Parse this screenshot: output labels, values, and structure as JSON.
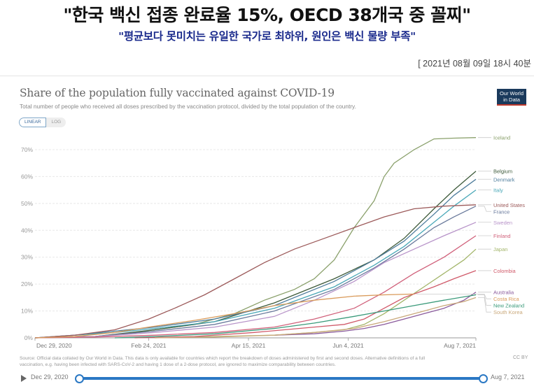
{
  "article": {
    "headline": "\"한국 백신 접종 완료율 15%, OECD 38개국 중 꼴찌\"",
    "subheadline": "\"평균보다 못미치는 유일한 국가로 최하위, 원인은 백신 물량 부족\"",
    "dateline": "[ 2021년 08월 09일 18시 40분"
  },
  "chart_header": {
    "logo_line1": "Our World",
    "logo_line2": "in Data",
    "toggle_linear": "LINEAR",
    "toggle_log": "LOG",
    "toggle_selected": "LINEAR"
  },
  "chart_data": {
    "type": "line",
    "title": "Share of the population fully vaccinated against COVID-19",
    "subtitle": "Total number of people who received all doses prescribed by the vaccination protocol, divided by the total population of the country.",
    "xlabel": "",
    "ylabel": "",
    "x_unit": "days since Dec 29, 2020",
    "xlim": [
      0,
      221
    ],
    "ylim": [
      0,
      70
    ],
    "grid": true,
    "legend_position": "right",
    "y_ticks": [
      0,
      10,
      20,
      30,
      40,
      50,
      60,
      70
    ],
    "y_tick_labels": [
      "0%",
      "10%",
      "20%",
      "30%",
      "40%",
      "50%",
      "60%",
      "70%"
    ],
    "x_ticks": [
      0,
      57,
      107,
      157,
      221
    ],
    "x_tick_labels": [
      "Dec 29, 2020",
      "Feb 24, 2021",
      "Apr 15, 2021",
      "Jun 4, 2021",
      "Aug 7, 2021"
    ],
    "series": [
      {
        "name": "Iceland",
        "color": "#8aa06b",
        "x": [
          0,
          30,
          50,
          60,
          80,
          100,
          115,
          130,
          140,
          150,
          160,
          170,
          175,
          180,
          190,
          200,
          210,
          221
        ],
        "y": [
          0,
          0.5,
          2,
          3,
          5,
          9,
          14,
          18,
          22,
          29,
          41,
          51,
          60,
          65,
          70,
          74,
          74.3,
          74.5
        ]
      },
      {
        "name": "Belgium",
        "color": "#3d5a3a",
        "x": [
          0,
          30,
          60,
          90,
          120,
          150,
          170,
          185,
          200,
          210,
          221
        ],
        "y": [
          0,
          0.5,
          3,
          6,
          13,
          22,
          29,
          37,
          48,
          55,
          62
        ]
      },
      {
        "name": "Denmark",
        "color": "#4f7d9c",
        "x": [
          0,
          20,
          40,
          60,
          90,
          120,
          150,
          170,
          185,
          200,
          210,
          221
        ],
        "y": [
          0,
          1,
          2.5,
          4,
          7,
          12,
          21,
          29,
          36,
          46,
          53,
          59
        ]
      },
      {
        "name": "Italy",
        "color": "#4aa8b8",
        "x": [
          0,
          20,
          40,
          60,
          90,
          120,
          150,
          170,
          185,
          200,
          210,
          221
        ],
        "y": [
          0,
          1,
          2,
          3.5,
          6,
          11,
          19,
          27,
          34,
          43,
          49,
          55
        ]
      },
      {
        "name": "United States",
        "color": "#9c5a5a",
        "x": [
          0,
          20,
          40,
          57,
          70,
          85,
          100,
          115,
          130,
          145,
          160,
          175,
          190,
          205,
          221
        ],
        "y": [
          0,
          1,
          3,
          7,
          11,
          16,
          22,
          28,
          33,
          37,
          41,
          45,
          48,
          49,
          49.5
        ]
      },
      {
        "name": "France",
        "color": "#6a7a9c",
        "x": [
          0,
          30,
          60,
          90,
          120,
          150,
          170,
          185,
          200,
          210,
          221
        ],
        "y": [
          0,
          0.5,
          2.5,
          5,
          10,
          18,
          26,
          33,
          41,
          45,
          49
        ]
      },
      {
        "name": "Sweden",
        "color": "#b894c9",
        "x": [
          0,
          30,
          60,
          90,
          120,
          140,
          160,
          175,
          190,
          205,
          221
        ],
        "y": [
          0,
          0.5,
          2,
          4,
          8,
          14,
          21,
          28,
          33,
          38,
          43
        ]
      },
      {
        "name": "Finland",
        "color": "#d0607a",
        "x": [
          0,
          30,
          60,
          90,
          120,
          140,
          160,
          175,
          190,
          205,
          221
        ],
        "y": [
          0,
          0.3,
          1,
          2,
          4,
          7,
          11,
          17,
          24,
          30,
          38
        ]
      },
      {
        "name": "Japan",
        "color": "#a3b56a",
        "x": [
          60,
          90,
          120,
          140,
          155,
          165,
          175,
          185,
          195,
          205,
          215,
          221
        ],
        "y": [
          0,
          0.5,
          1,
          2,
          3,
          5,
          9,
          14,
          19,
          24,
          29,
          33
        ]
      },
      {
        "name": "Colombia",
        "color": "#d05a6a",
        "x": [
          50,
          80,
          110,
          140,
          155,
          165,
          175,
          185,
          200,
          210,
          221
        ],
        "y": [
          0,
          0.5,
          2,
          4,
          5,
          7,
          11,
          15,
          19,
          22,
          25
        ]
      },
      {
        "name": "Australia",
        "color": "#8a5a9c",
        "x": [
          120,
          140,
          155,
          165,
          175,
          185,
          195,
          205,
          215,
          221
        ],
        "y": [
          1,
          1.5,
          2.5,
          3.5,
          5,
          7,
          9,
          11,
          14,
          17
        ]
      },
      {
        "name": "Costa Rica",
        "color": "#d99a5a",
        "x": [
          0,
          20,
          40,
          57,
          80,
          100,
          120,
          140,
          160,
          175,
          190
        ],
        "y": [
          0,
          0.5,
          2,
          4,
          6.5,
          9,
          12,
          14,
          15.5,
          16,
          16.3
        ]
      },
      {
        "name": "New Zealand",
        "color": "#3a9a7a",
        "x": [
          40,
          60,
          90,
          120,
          140,
          160,
          175,
          190,
          205,
          221
        ],
        "y": [
          0,
          0.5,
          1.5,
          3.5,
          5.5,
          8,
          10,
          12,
          14,
          16
        ]
      },
      {
        "name": "South Korea",
        "color": "#c9a87a",
        "x": [
          60,
          90,
          120,
          140,
          160,
          175,
          185,
          195,
          205,
          215,
          221
        ],
        "y": [
          0,
          0.3,
          1,
          2,
          3.5,
          6,
          8,
          10,
          12,
          13.5,
          15
        ]
      }
    ],
    "legend_order": [
      "Iceland",
      "Belgium",
      "Denmark",
      "Italy",
      "United States",
      "France",
      "Sweden",
      "Finland",
      "Japan",
      "Colombia",
      "Australia",
      "Costa Rica",
      "New Zealand",
      "South Korea"
    ]
  },
  "footer": {
    "source_line1": "Source: Official data collated by Our World in Data. This data is only available for countries which report the breakdown of doses administered by first and second doses. Alternative definitions of a full",
    "source_line2": "vaccination, e.g. having been infected with SARS-CoV-2 and having 1 dose of a 2-dose protocol, are ignored to maximize comparability between countries.",
    "license": "CC BY"
  },
  "timeline": {
    "start_label": "Dec 29, 2020",
    "end_label": "Aug 7, 2021",
    "start_value": 0,
    "end_value": 1
  }
}
